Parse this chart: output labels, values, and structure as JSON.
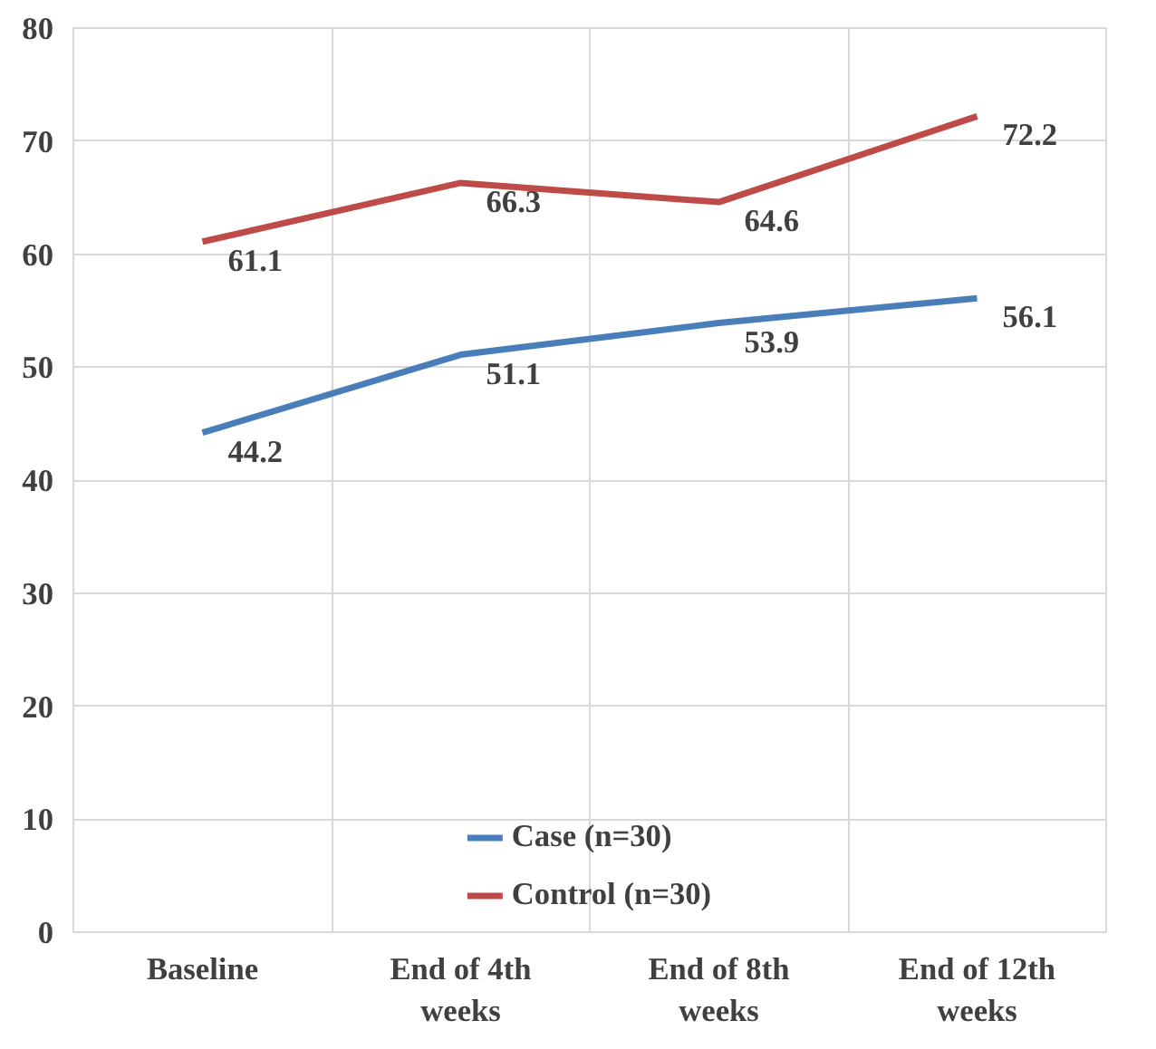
{
  "chart_data": {
    "type": "line",
    "categories": [
      "Baseline",
      "End of 4th weeks",
      "End of 8th weeks",
      "End of 12th weeks"
    ],
    "series": [
      {
        "name": "Case (n=30)",
        "color": "#4a7ebb",
        "values": [
          44.2,
          51.1,
          53.9,
          56.1
        ]
      },
      {
        "name": "Control (n=30)",
        "color": "#be4b48",
        "values": [
          61.1,
          66.3,
          64.6,
          72.2
        ]
      }
    ],
    "ylim": [
      0,
      80
    ],
    "yticks": [
      0,
      10,
      20,
      30,
      40,
      50,
      60,
      70,
      80
    ],
    "grid": true,
    "legend": "bottom",
    "data_labels": true,
    "marker": "none",
    "line_style": "solid"
  }
}
